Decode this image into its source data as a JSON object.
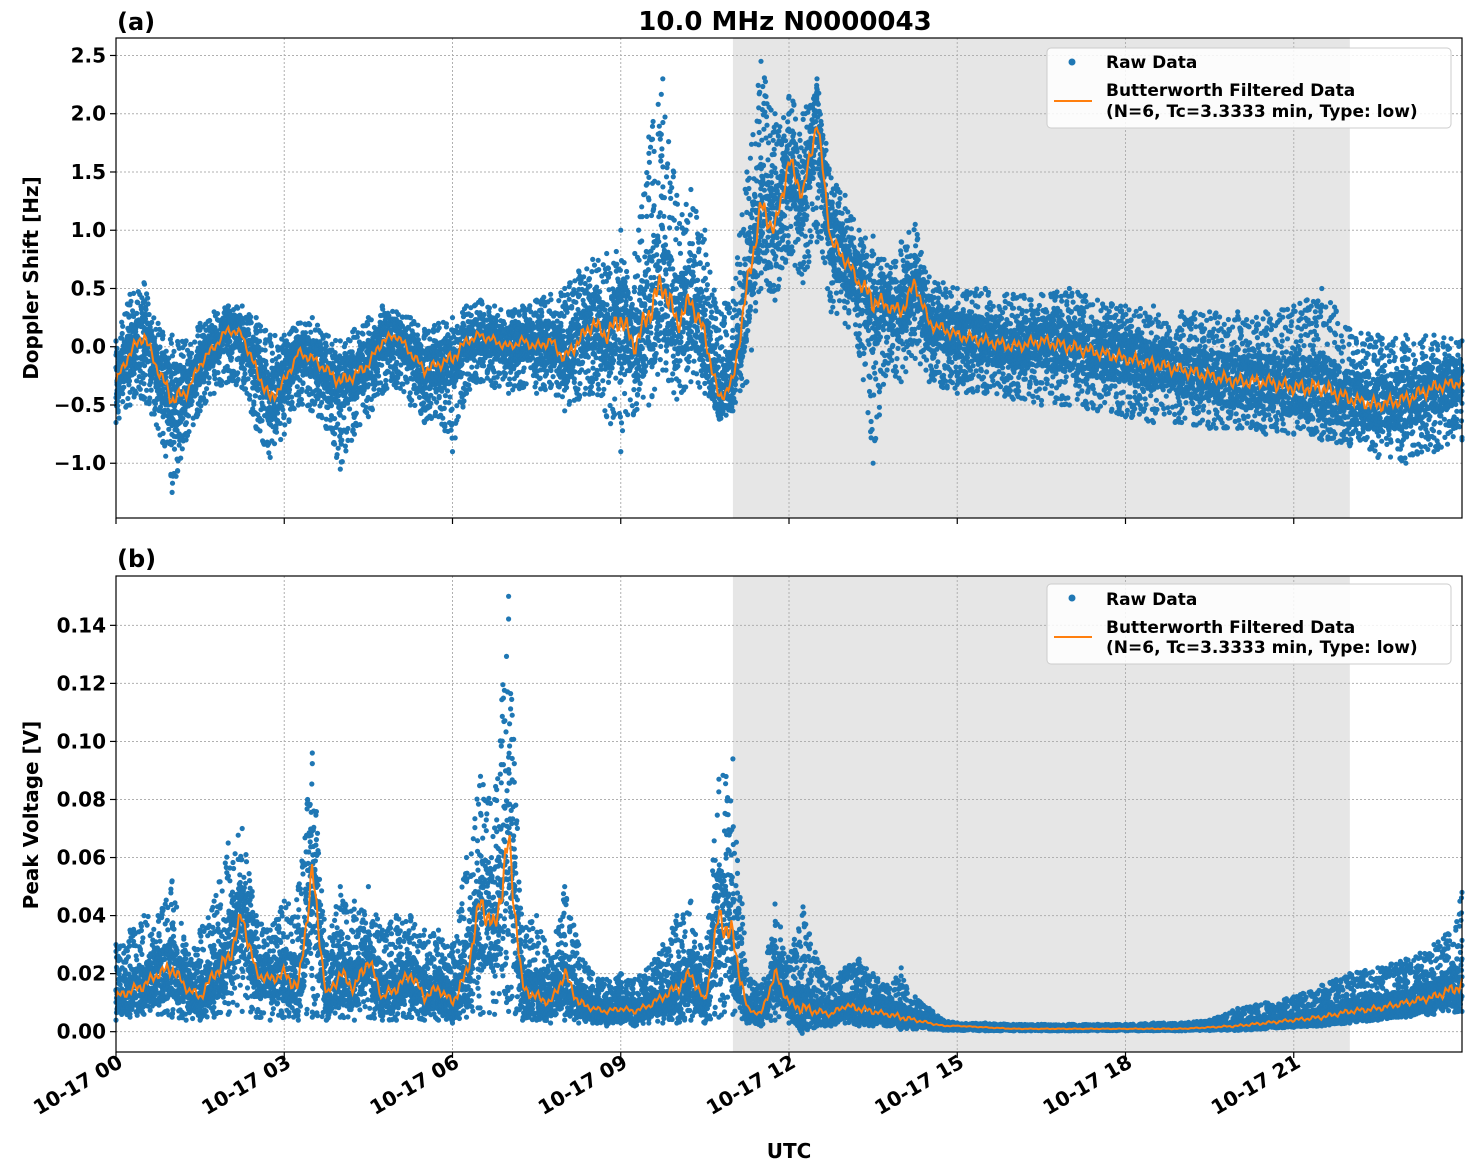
{
  "figure": {
    "title": "10.0 MHz N0000043",
    "xlabel": "UTC",
    "x_ticks": [
      "10-17 00",
      "10-17 03",
      "10-17 06",
      "10-17 09",
      "10-17 12",
      "10-17 15",
      "10-17 18",
      "10-17 21"
    ],
    "colors": {
      "raw": "#1f77b4",
      "filtered": "#ff7f0e",
      "shade": "#e6e6e6",
      "grid": "#b0b0b0"
    }
  },
  "chart_data": [
    {
      "type": "scatter",
      "panel_label": "(a)",
      "ylabel": "Doppler Shift [Hz]",
      "x_unit": "hours UTC",
      "xlim": [
        0,
        24
      ],
      "ylim": [
        -1.47,
        2.65
      ],
      "y_ticks": [
        "2.5",
        "2.0",
        "1.5",
        "1.0",
        "0.5",
        "0.0",
        "−0.5",
        "−1.0"
      ],
      "y_tick_values": [
        2.5,
        2.0,
        1.5,
        1.0,
        0.5,
        0.0,
        -0.5,
        -1.0
      ],
      "shaded_region": [
        11.0,
        22.0
      ],
      "grid": true,
      "legend": {
        "placement": "top-right",
        "raw_label": "Raw Data",
        "filtered_label": "Butterworth Filtered Data",
        "filtered_label2": "(N=6, Tc=3.3333 min, Type: low)"
      },
      "series": [
        {
          "name": "Butterworth Filtered Data (N=6, Tc=3.3333 min, Type: low)",
          "x": [
            0,
            0.25,
            0.5,
            0.75,
            1.0,
            1.25,
            1.5,
            1.75,
            2.0,
            2.25,
            2.5,
            2.75,
            3.0,
            3.25,
            3.5,
            3.75,
            4.0,
            4.25,
            4.5,
            4.75,
            5.0,
            5.25,
            5.5,
            5.75,
            6.0,
            6.25,
            6.5,
            6.75,
            7.0,
            7.25,
            7.5,
            7.75,
            8.0,
            8.25,
            8.5,
            8.75,
            9.0,
            9.25,
            9.5,
            9.75,
            10.0,
            10.25,
            10.5,
            10.75,
            11.0,
            11.25,
            11.5,
            11.75,
            12.0,
            12.25,
            12.5,
            12.75,
            13.0,
            13.25,
            13.5,
            13.75,
            14.0,
            14.25,
            14.5,
            14.75,
            15.0,
            15.5,
            16.0,
            16.5,
            17.0,
            17.5,
            18.0,
            18.5,
            19.0,
            19.5,
            20.0,
            20.5,
            21.0,
            21.5,
            22.0,
            22.5,
            23.0,
            23.5,
            24.0
          ],
          "y": [
            -0.3,
            -0.05,
            0.1,
            -0.2,
            -0.45,
            -0.4,
            -0.15,
            0.0,
            0.15,
            0.1,
            -0.2,
            -0.45,
            -0.3,
            -0.05,
            -0.1,
            -0.2,
            -0.3,
            -0.25,
            -0.15,
            0.05,
            0.1,
            -0.05,
            -0.2,
            -0.15,
            -0.1,
            0.05,
            0.1,
            0.05,
            0.0,
            0.05,
            0.0,
            0.05,
            -0.1,
            0.05,
            0.2,
            0.1,
            0.25,
            0.0,
            0.3,
            0.55,
            0.2,
            0.4,
            0.1,
            -0.45,
            -0.3,
            0.5,
            1.2,
            1.0,
            1.6,
            1.3,
            1.95,
            0.9,
            0.75,
            0.55,
            0.4,
            0.35,
            0.3,
            0.55,
            0.2,
            0.15,
            0.1,
            0.05,
            0.0,
            0.05,
            0.0,
            -0.05,
            -0.1,
            -0.15,
            -0.2,
            -0.25,
            -0.3,
            -0.3,
            -0.35,
            -0.35,
            -0.45,
            -0.5,
            -0.45,
            -0.35,
            -0.3
          ]
        },
        {
          "name": "Raw Data",
          "x": [
            0,
            0.25,
            0.5,
            0.75,
            1.0,
            1.25,
            1.5,
            1.75,
            2.0,
            2.25,
            2.5,
            2.75,
            3.0,
            3.25,
            3.5,
            3.75,
            4.0,
            4.25,
            4.5,
            4.75,
            5.0,
            5.25,
            5.5,
            5.75,
            6.0,
            6.25,
            6.5,
            6.75,
            7.0,
            7.25,
            7.5,
            7.75,
            8.0,
            8.25,
            8.5,
            8.75,
            9.0,
            9.25,
            9.5,
            9.75,
            10.0,
            10.25,
            10.5,
            10.75,
            11.0,
            11.25,
            11.5,
            11.75,
            12.0,
            12.25,
            12.5,
            12.75,
            13.0,
            13.25,
            13.5,
            13.75,
            14.0,
            14.25,
            14.5,
            14.75,
            15.0,
            15.5,
            16.0,
            16.5,
            17.0,
            17.5,
            18.0,
            18.5,
            19.0,
            19.5,
            20.0,
            20.5,
            21.0,
            21.5,
            22.0,
            22.5,
            23.0,
            23.5,
            24.0
          ],
          "y_min": [
            -0.65,
            -0.5,
            -0.45,
            -0.7,
            -1.25,
            -0.8,
            -0.55,
            -0.4,
            -0.3,
            -0.35,
            -0.7,
            -0.95,
            -0.75,
            -0.5,
            -0.55,
            -0.7,
            -1.05,
            -0.75,
            -0.6,
            -0.4,
            -0.35,
            -0.5,
            -0.65,
            -0.6,
            -0.9,
            -0.4,
            -0.3,
            -0.35,
            -0.4,
            -0.35,
            -0.4,
            -0.35,
            -0.55,
            -0.45,
            -0.4,
            -0.6,
            -0.9,
            -0.55,
            -0.5,
            -0.2,
            -0.45,
            -0.3,
            -0.4,
            -0.6,
            -0.55,
            -0.3,
            0.5,
            0.4,
            0.8,
            0.55,
            0.9,
            0.3,
            0.2,
            -0.05,
            -1.0,
            -0.2,
            -0.3,
            -0.1,
            -0.3,
            -0.35,
            -0.4,
            -0.4,
            -0.45,
            -0.5,
            -0.5,
            -0.55,
            -0.6,
            -0.65,
            -0.65,
            -0.7,
            -0.7,
            -0.75,
            -0.75,
            -0.8,
            -0.85,
            -0.95,
            -1.0,
            -0.9,
            -0.8
          ],
          "y_max": [
            0.05,
            0.45,
            0.55,
            0.2,
            0.1,
            0.05,
            0.2,
            0.3,
            0.35,
            0.35,
            0.25,
            0.1,
            0.1,
            0.2,
            0.25,
            0.1,
            0.05,
            0.15,
            0.25,
            0.35,
            0.3,
            0.25,
            0.15,
            0.2,
            0.25,
            0.35,
            0.4,
            0.35,
            0.3,
            0.35,
            0.4,
            0.45,
            0.5,
            0.65,
            0.75,
            0.8,
            1.0,
            0.8,
            1.8,
            2.3,
            1.3,
            1.35,
            1.0,
            0.3,
            0.5,
            1.5,
            2.45,
            2.0,
            2.15,
            2.0,
            2.3,
            1.45,
            1.3,
            1.0,
            0.95,
            0.7,
            0.9,
            1.05,
            0.6,
            0.55,
            0.5,
            0.5,
            0.45,
            0.45,
            0.5,
            0.4,
            0.35,
            0.35,
            0.3,
            0.3,
            0.3,
            0.3,
            0.35,
            0.5,
            0.15,
            0.1,
            0.1,
            0.1,
            0.05
          ]
        }
      ]
    },
    {
      "type": "scatter",
      "panel_label": "(b)",
      "ylabel": "Peak Voltage [V]",
      "x_unit": "hours UTC",
      "xlim": [
        0,
        24
      ],
      "ylim": [
        -0.007,
        0.157
      ],
      "y_ticks": [
        "0.14",
        "0.12",
        "0.10",
        "0.08",
        "0.06",
        "0.04",
        "0.02",
        "0.00"
      ],
      "y_tick_values": [
        0.14,
        0.12,
        0.1,
        0.08,
        0.06,
        0.04,
        0.02,
        0.0
      ],
      "shaded_region": [
        11.0,
        22.0
      ],
      "grid": true,
      "legend": {
        "placement": "top-right",
        "raw_label": "Raw Data",
        "filtered_label": "Butterworth Filtered Data",
        "filtered_label2": "(N=6, Tc=3.3333 min, Type: low)"
      },
      "series": [
        {
          "name": "Butterworth Filtered Data (N=6, Tc=3.3333 min, Type: low)",
          "x": [
            0,
            0.25,
            0.5,
            0.75,
            1.0,
            1.25,
            1.5,
            1.75,
            2.0,
            2.25,
            2.5,
            2.75,
            3.0,
            3.25,
            3.5,
            3.75,
            4.0,
            4.25,
            4.5,
            4.75,
            5.0,
            5.25,
            5.5,
            5.75,
            6.0,
            6.25,
            6.5,
            6.75,
            7.0,
            7.25,
            7.5,
            7.75,
            8.0,
            8.25,
            8.5,
            8.75,
            9.0,
            9.25,
            9.5,
            9.75,
            10.0,
            10.25,
            10.5,
            10.75,
            11.0,
            11.25,
            11.5,
            11.75,
            12.0,
            12.25,
            12.5,
            12.75,
            13.0,
            13.25,
            13.5,
            13.75,
            14.0,
            14.25,
            14.5,
            14.75,
            15.0,
            15.5,
            16.0,
            16.5,
            17.0,
            17.5,
            18.0,
            18.5,
            19.0,
            19.5,
            20.0,
            20.5,
            21.0,
            21.5,
            22.0,
            22.5,
            23.0,
            23.5,
            24.0
          ],
          "y": [
            0.012,
            0.014,
            0.016,
            0.02,
            0.022,
            0.015,
            0.012,
            0.02,
            0.025,
            0.04,
            0.02,
            0.018,
            0.02,
            0.015,
            0.055,
            0.012,
            0.02,
            0.015,
            0.025,
            0.012,
            0.015,
            0.02,
            0.012,
            0.015,
            0.01,
            0.02,
            0.045,
            0.035,
            0.065,
            0.015,
            0.012,
            0.01,
            0.02,
            0.01,
            0.008,
            0.007,
            0.008,
            0.007,
            0.009,
            0.012,
            0.015,
            0.02,
            0.01,
            0.04,
            0.032,
            0.008,
            0.006,
            0.02,
            0.01,
            0.008,
            0.007,
            0.006,
            0.009,
            0.008,
            0.007,
            0.006,
            0.005,
            0.004,
            0.003,
            0.002,
            0.002,
            0.0015,
            0.001,
            0.001,
            0.001,
            0.001,
            0.001,
            0.001,
            0.001,
            0.0015,
            0.002,
            0.003,
            0.004,
            0.005,
            0.007,
            0.008,
            0.01,
            0.012,
            0.016
          ]
        },
        {
          "name": "Raw Data",
          "x": [
            0,
            0.25,
            0.5,
            0.75,
            1.0,
            1.25,
            1.5,
            1.75,
            2.0,
            2.25,
            2.5,
            2.75,
            3.0,
            3.25,
            3.5,
            3.75,
            4.0,
            4.25,
            4.5,
            4.75,
            5.0,
            5.25,
            5.5,
            5.75,
            6.0,
            6.25,
            6.5,
            6.75,
            7.0,
            7.25,
            7.5,
            7.75,
            8.0,
            8.25,
            8.5,
            8.75,
            9.0,
            9.25,
            9.5,
            9.75,
            10.0,
            10.25,
            10.5,
            10.75,
            11.0,
            11.25,
            11.5,
            11.75,
            12.0,
            12.25,
            12.5,
            12.75,
            13.0,
            13.25,
            13.5,
            13.75,
            14.0,
            14.25,
            14.5,
            14.75,
            15.0,
            15.5,
            16.0,
            16.5,
            17.0,
            17.5,
            18.0,
            18.5,
            19.0,
            19.5,
            20.0,
            20.5,
            21.0,
            21.5,
            22.0,
            22.5,
            23.0,
            23.5,
            24.0
          ],
          "y_min": [
            0.004,
            0.005,
            0.006,
            0.006,
            0.005,
            0.004,
            0.004,
            0.005,
            0.006,
            0.007,
            0.005,
            0.004,
            0.005,
            0.004,
            0.005,
            0.004,
            0.005,
            0.004,
            0.005,
            0.004,
            0.004,
            0.005,
            0.004,
            0.004,
            0.003,
            0.005,
            0.006,
            0.006,
            0.007,
            0.004,
            0.004,
            0.003,
            0.004,
            0.003,
            0.003,
            0.002,
            0.003,
            0.002,
            0.003,
            0.003,
            0.003,
            0.004,
            0.003,
            0.005,
            0.006,
            0.003,
            0.002,
            0.004,
            0.003,
            0.003,
            0.002,
            0.002,
            0.003,
            0.002,
            0.002,
            0.002,
            0.001,
            0.001,
            0.001,
            0.0005,
            0.0005,
            0.0003,
            0.0003,
            0.0003,
            0.0003,
            0.0003,
            0.0003,
            0.0003,
            0.0003,
            0.0004,
            0.0006,
            0.001,
            0.0015,
            0.002,
            0.003,
            0.004,
            0.005,
            0.006,
            0.007
          ],
          "y_max": [
            0.03,
            0.035,
            0.04,
            0.04,
            0.052,
            0.03,
            0.035,
            0.045,
            0.065,
            0.07,
            0.04,
            0.035,
            0.045,
            0.05,
            0.096,
            0.03,
            0.05,
            0.045,
            0.05,
            0.035,
            0.04,
            0.04,
            0.035,
            0.035,
            0.03,
            0.06,
            0.088,
            0.08,
            0.15,
            0.035,
            0.04,
            0.025,
            0.05,
            0.03,
            0.02,
            0.018,
            0.02,
            0.018,
            0.022,
            0.03,
            0.04,
            0.045,
            0.025,
            0.087,
            0.094,
            0.02,
            0.015,
            0.044,
            0.025,
            0.043,
            0.025,
            0.018,
            0.022,
            0.025,
            0.02,
            0.016,
            0.022,
            0.012,
            0.008,
            0.004,
            0.003,
            0.003,
            0.0025,
            0.0025,
            0.0025,
            0.0025,
            0.0025,
            0.003,
            0.003,
            0.004,
            0.008,
            0.01,
            0.012,
            0.016,
            0.02,
            0.022,
            0.025,
            0.03,
            0.048
          ]
        }
      ]
    }
  ]
}
